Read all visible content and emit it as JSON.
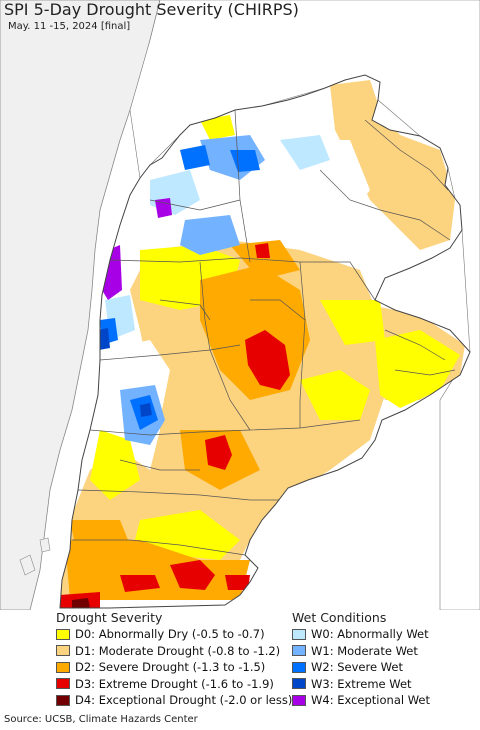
{
  "header": {
    "title": "SPI 5-Day Drought Severity (CHIRPS)",
    "subtitle": "May. 11 -15, 2024 [final]"
  },
  "legend": {
    "drought": {
      "title": "Drought Severity",
      "items": [
        {
          "label": "D0: Abnormally Dry (-0.5 to -0.7)",
          "color": "#ffff00"
        },
        {
          "label": "D1: Moderate Drought (-0.8 to -1.2)",
          "color": "#fcd37f"
        },
        {
          "label": "D2: Severe Drought (-1.3 to -1.5)",
          "color": "#ffaa00"
        },
        {
          "label": "D3: Extreme Drought (-1.6 to -1.9)",
          "color": "#e60000"
        },
        {
          "label": "D4: Exceptional Drought (-2.0 or less)",
          "color": "#730000"
        }
      ]
    },
    "wet": {
      "title": "Wet Conditions",
      "items": [
        {
          "label": "W0: Abnormally Wet",
          "color": "#bee8ff"
        },
        {
          "label": "W1: Moderate Wet",
          "color": "#73b2ff"
        },
        {
          "label": "W2: Severe Wet",
          "color": "#0070ff"
        },
        {
          "label": "W3: Extreme Wet",
          "color": "#0046c8"
        },
        {
          "label": "W4: Exceptional Wet",
          "color": "#a800e6"
        }
      ]
    }
  },
  "source": "Source: UCSB, Climate Hazards Center",
  "colors": {
    "ocean": "#ffffff",
    "outside_land": "#e0e0e0",
    "border": "#555555"
  }
}
